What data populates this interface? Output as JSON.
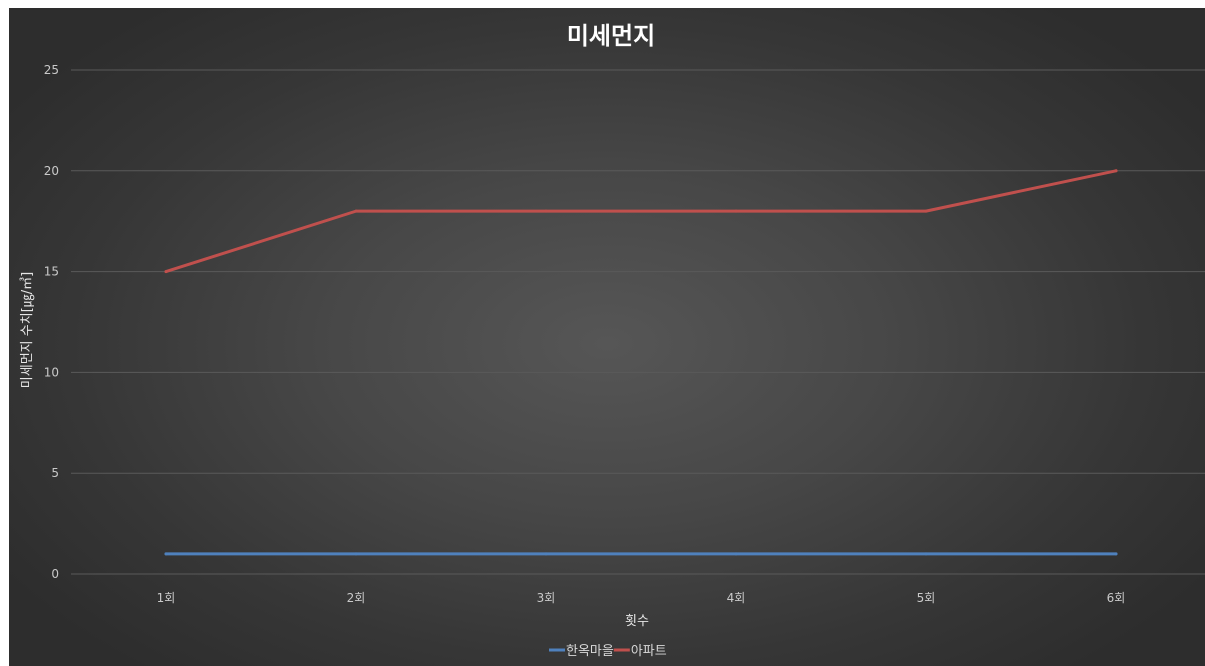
{
  "chart_data": {
    "type": "line",
    "title": "미세먼지",
    "xlabel": "횟수",
    "ylabel": "미세먼지 수치[㎍/㎥]",
    "categories": [
      "1회",
      "2회",
      "3회",
      "4회",
      "5회",
      "6회"
    ],
    "ylim": [
      0,
      25
    ],
    "yticks": [
      0,
      5,
      10,
      15,
      20,
      25
    ],
    "grid": true,
    "legend_position": "bottom",
    "series": [
      {
        "name": "한옥마을",
        "values": [
          1,
          1,
          1,
          1,
          1,
          1
        ],
        "color": "#4f81bd"
      },
      {
        "name": "아파트",
        "values": [
          15,
          18,
          18,
          18,
          18,
          20
        ],
        "color": "#c0504d"
      }
    ]
  }
}
